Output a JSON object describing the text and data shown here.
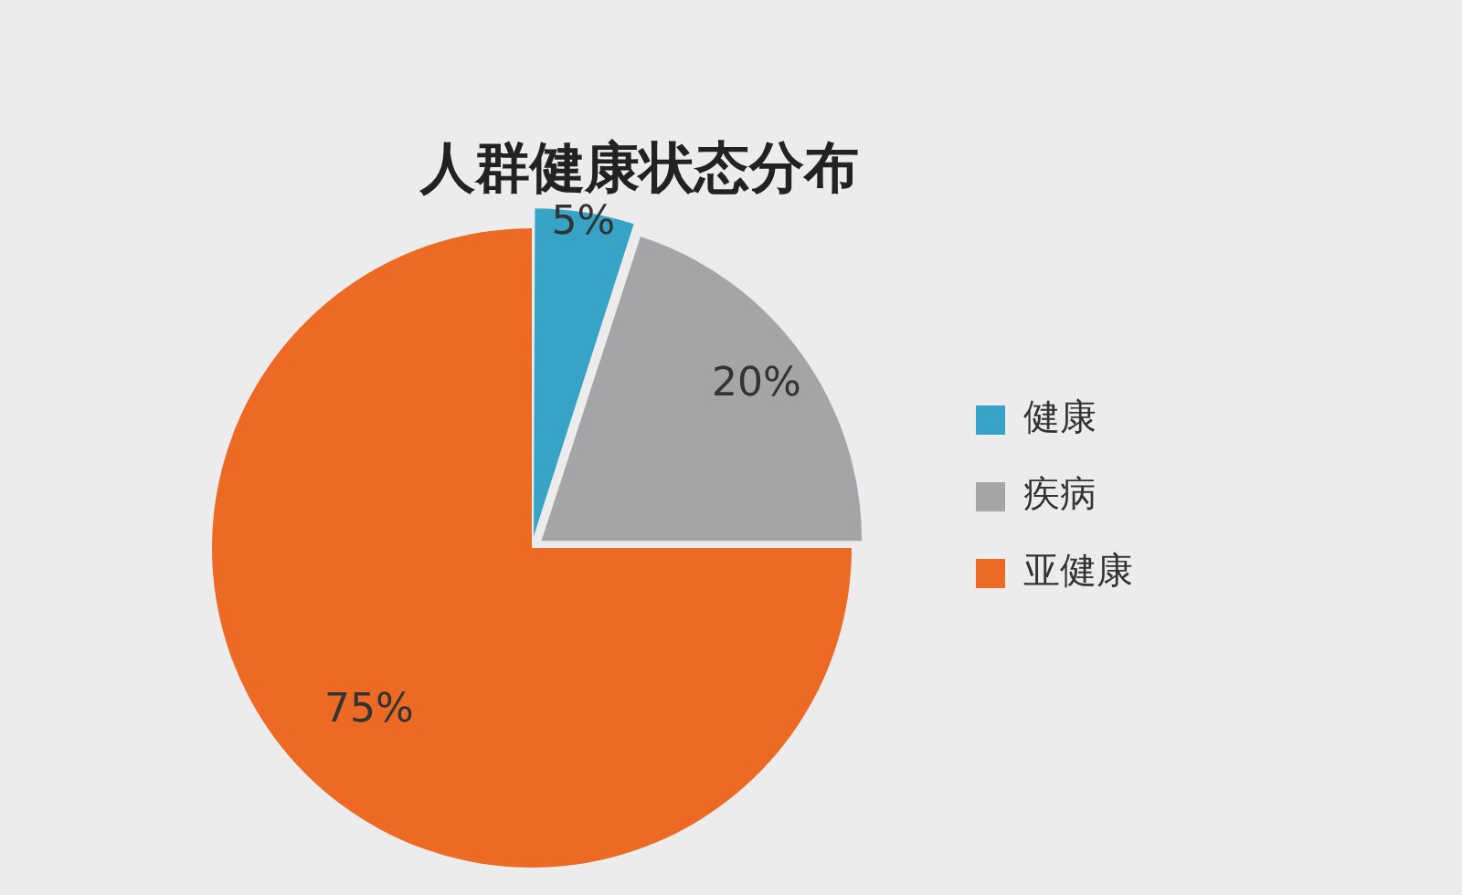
{
  "chart_data": {
    "type": "pie",
    "title": "人群健康状态分布",
    "categories": [
      "健康",
      "疾病",
      "亚健康"
    ],
    "values": [
      5,
      20,
      75
    ],
    "colors": [
      "#37a3c6",
      "#a5a5a7",
      "#ec6a24"
    ],
    "value_labels": [
      "5%",
      "20%",
      "75%"
    ],
    "legend": "right"
  }
}
